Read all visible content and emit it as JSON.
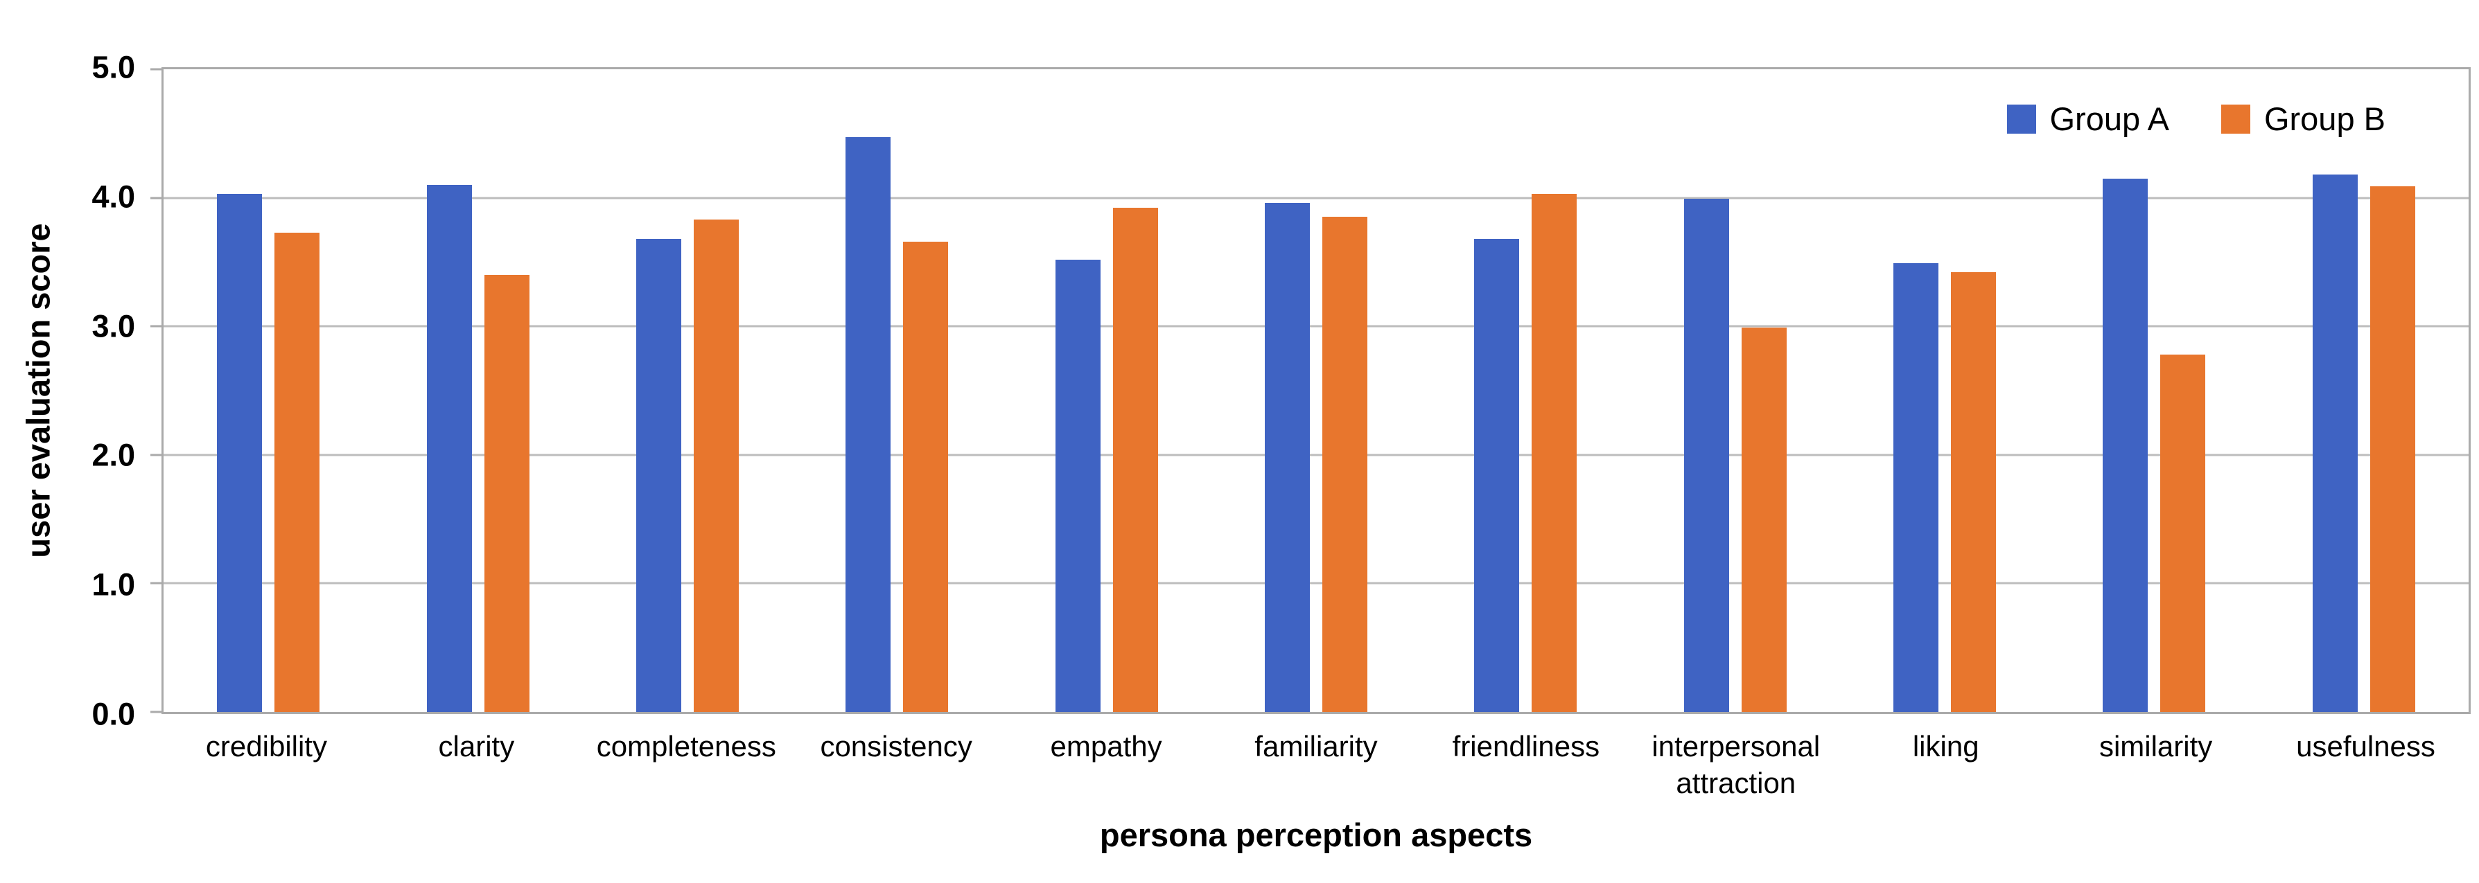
{
  "figure": {
    "background_color": "#ffffff",
    "axis_color": "#aaaaaa",
    "gridline_color": "#bdbdbd"
  },
  "chart_data": {
    "type": "bar",
    "title": "",
    "xlabel": "persona perception aspects",
    "ylabel": "user evaluation score",
    "ylim": [
      0,
      5
    ],
    "grid": "horizontal",
    "legend_position": "top-right-inside",
    "yticks": [
      {
        "value": 0,
        "label": "0.0"
      },
      {
        "value": 1,
        "label": "1.0"
      },
      {
        "value": 2,
        "label": "2.0"
      },
      {
        "value": 3,
        "label": "3.0"
      },
      {
        "value": 4,
        "label": "4.0"
      },
      {
        "value": 5,
        "label": "5.0"
      }
    ],
    "categories": [
      "credibility",
      "clarity",
      "completeness",
      "consistency",
      "empathy",
      "familiarity",
      "friendliness",
      "interpersonal attraction",
      "liking",
      "similarity",
      "usefulness"
    ],
    "series": [
      {
        "name": "Group A",
        "color": "#3f63c3",
        "values": [
          4.03,
          4.1,
          3.68,
          4.47,
          3.52,
          3.96,
          3.68,
          3.99,
          3.49,
          4.15,
          4.18
        ]
      },
      {
        "name": "Group B",
        "color": "#e8762d",
        "values": [
          3.73,
          3.4,
          3.83,
          3.66,
          3.92,
          3.85,
          4.03,
          2.99,
          3.42,
          2.78,
          4.09
        ]
      }
    ]
  }
}
